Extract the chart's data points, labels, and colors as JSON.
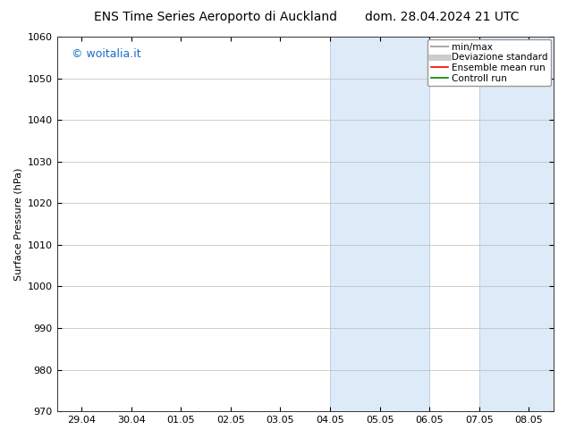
{
  "title_left": "ENS Time Series Aeroporto di Auckland",
  "title_right": "dom. 28.04.2024 21 UTC",
  "ylabel": "Surface Pressure (hPa)",
  "ylim": [
    970,
    1060
  ],
  "yticks": [
    970,
    980,
    990,
    1000,
    1010,
    1020,
    1030,
    1040,
    1050,
    1060
  ],
  "xtick_labels": [
    "29.04",
    "30.04",
    "01.05",
    "02.05",
    "03.05",
    "04.05",
    "05.05",
    "06.05",
    "07.05",
    "08.05"
  ],
  "shaded_bands": [
    {
      "xstart": 5.0,
      "xend": 7.0
    },
    {
      "xstart": 8.0,
      "xend": 9.5
    }
  ],
  "band_color": "#ddeaf7",
  "band_edge_color": "#b8d0e8",
  "watermark_text": "© woitalia.it",
  "watermark_color": "#1a6dcc",
  "legend_entries": [
    {
      "label": "min/max",
      "color": "#aaaaaa",
      "lw": 1.5
    },
    {
      "label": "Deviazione standard",
      "color": "#cccccc",
      "lw": 5
    },
    {
      "label": "Ensemble mean run",
      "color": "red",
      "lw": 1.2
    },
    {
      "label": "Controll run",
      "color": "green",
      "lw": 1.2
    }
  ],
  "font_size": 8,
  "title_fontsize": 10,
  "background_color": "#ffffff",
  "grid_color": "#bbbbbb",
  "tick_direction": "in"
}
